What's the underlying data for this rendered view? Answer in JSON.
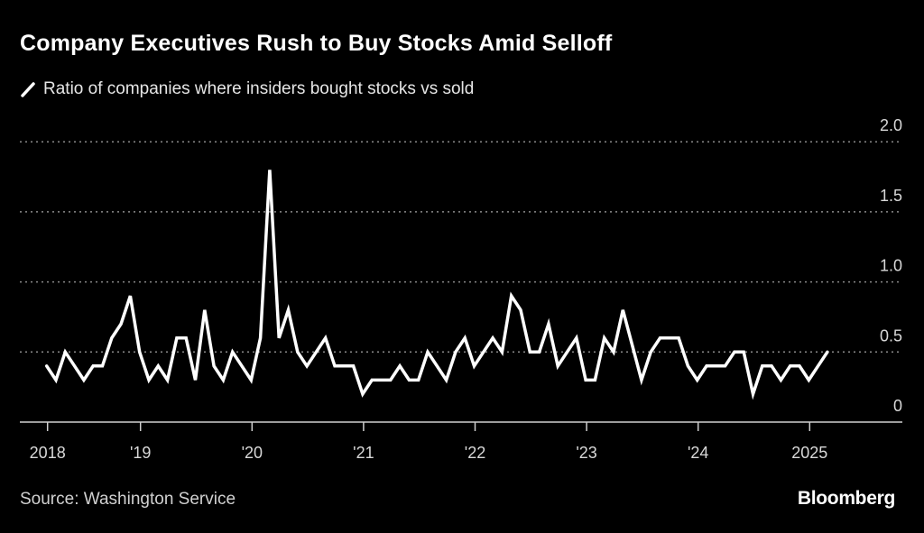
{
  "title": "Company Executives Rush to Buy Stocks Amid Selloff",
  "source": "Source: Washington Service",
  "brand": "Bloomberg",
  "colors": {
    "background": "#000000",
    "line": "#ffffff",
    "grid": "#8a8a8a"
  },
  "chart_data": {
    "type": "line",
    "title": "Company Executives Rush to Buy Stocks Amid Selloff",
    "legend": [
      {
        "label": "Ratio of companies where insiders bought stocks vs sold",
        "icon": "slash-line-icon"
      }
    ],
    "legend_placement": "top-left",
    "xlabel": "",
    "ylabel": "",
    "x_start": "2018-03",
    "x_frequency": "monthly",
    "ylim": [
      0,
      2.0
    ],
    "yticks": [
      {
        "value": 0,
        "label": "0"
      },
      {
        "value": 0.5,
        "label": "0.5"
      },
      {
        "value": 1.0,
        "label": "1.0"
      },
      {
        "value": 1.5,
        "label": "1.5"
      },
      {
        "value": 2.0,
        "label": "2.0"
      }
    ],
    "xticks": [
      {
        "index": 0,
        "label": "2018"
      },
      {
        "index": 10,
        "label": "'19"
      },
      {
        "index": 22,
        "label": "'20"
      },
      {
        "index": 34,
        "label": "'21"
      },
      {
        "index": 46,
        "label": "'22"
      },
      {
        "index": 58,
        "label": "'23"
      },
      {
        "index": 70,
        "label": "'24"
      },
      {
        "index": 82,
        "label": "2025"
      }
    ],
    "grid": true,
    "series": [
      {
        "name": "Ratio of companies where insiders bought stocks vs sold",
        "values": [
          0.4,
          0.3,
          0.5,
          0.4,
          0.3,
          0.4,
          0.4,
          0.6,
          0.7,
          0.9,
          0.5,
          0.3,
          0.4,
          0.3,
          0.6,
          0.6,
          0.3,
          0.8,
          0.4,
          0.3,
          0.5,
          0.4,
          0.3,
          0.6,
          1.8,
          0.6,
          0.8,
          0.5,
          0.4,
          0.5,
          0.6,
          0.4,
          0.4,
          0.4,
          0.2,
          0.3,
          0.3,
          0.3,
          0.4,
          0.3,
          0.3,
          0.5,
          0.4,
          0.3,
          0.5,
          0.6,
          0.4,
          0.5,
          0.6,
          0.5,
          0.9,
          0.8,
          0.5,
          0.5,
          0.7,
          0.4,
          0.5,
          0.6,
          0.3,
          0.3,
          0.6,
          0.5,
          0.8,
          0.55,
          0.3,
          0.5,
          0.6,
          0.6,
          0.6,
          0.4,
          0.3,
          0.4,
          0.4,
          0.4,
          0.5,
          0.5,
          0.2,
          0.4,
          0.4,
          0.3,
          0.4,
          0.4,
          0.3,
          0.4,
          0.5
        ]
      }
    ]
  }
}
